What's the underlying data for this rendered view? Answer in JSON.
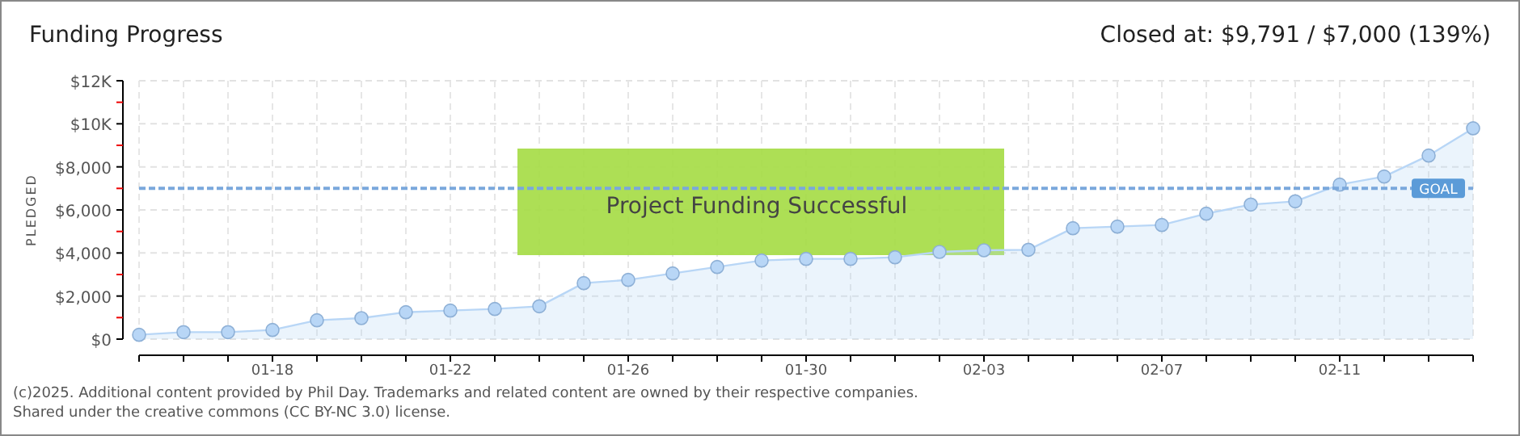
{
  "chart_data": {
    "type": "area",
    "title": "Funding Progress",
    "ylabel": "PLEDGED",
    "x": [
      "2025-01-15",
      "2025-01-16",
      "2025-01-17",
      "2025-01-18",
      "2025-01-19",
      "2025-01-20",
      "2025-01-21",
      "2025-01-22",
      "2025-01-23",
      "2025-01-24",
      "2025-01-25",
      "2025-01-26",
      "2025-01-27",
      "2025-01-28",
      "2025-01-29",
      "2025-01-30",
      "2025-01-31",
      "2025-02-01",
      "2025-02-02",
      "2025-02-03",
      "2025-02-04",
      "2025-02-05",
      "2025-02-06",
      "2025-02-07",
      "2025-02-08",
      "2025-02-09",
      "2025-02-10",
      "2025-02-11",
      "2025-02-12",
      "2025-02-13",
      "2025-02-14"
    ],
    "series": [
      {
        "color": "#b8d6f6",
        "values": [
          200,
          325,
          325,
          425,
          875,
          975,
          1250,
          1325,
          1400,
          1525,
          2600,
          2750,
          3050,
          3350,
          3650,
          3725,
          3725,
          3800,
          4050,
          4125,
          4150,
          5150,
          5225,
          5300,
          5825,
          6250,
          6400,
          7175,
          7550,
          8525,
          9791
        ]
      }
    ],
    "xlim": [
      "2025-01-15",
      "2025-02-14"
    ],
    "xticks": [
      {
        "value": "2025-01-15",
        "label": null
      },
      {
        "value": "2025-01-16",
        "label": null
      },
      {
        "value": "2025-01-17",
        "label": null
      },
      {
        "value": "2025-01-18",
        "label": "01-18"
      },
      {
        "value": "2025-01-19",
        "label": null
      },
      {
        "value": "2025-01-20",
        "label": null
      },
      {
        "value": "2025-01-21",
        "label": null
      },
      {
        "value": "2025-01-22",
        "label": "01-22"
      },
      {
        "value": "2025-01-23",
        "label": null
      },
      {
        "value": "2025-01-24",
        "label": null
      },
      {
        "value": "2025-01-25",
        "label": null
      },
      {
        "value": "2025-01-26",
        "label": "01-26"
      },
      {
        "value": "2025-01-27",
        "label": null
      },
      {
        "value": "2025-01-28",
        "label": null
      },
      {
        "value": "2025-01-29",
        "label": null
      },
      {
        "value": "2025-01-30",
        "label": "01-30"
      },
      {
        "value": "2025-01-31",
        "label": null
      },
      {
        "value": "2025-02-01",
        "label": null
      },
      {
        "value": "2025-02-02",
        "label": null
      },
      {
        "value": "2025-02-03",
        "label": "02-03"
      },
      {
        "value": "2025-02-04",
        "label": null
      },
      {
        "value": "2025-02-05",
        "label": null
      },
      {
        "value": "2025-02-06",
        "label": null
      },
      {
        "value": "2025-02-07",
        "label": "02-07"
      },
      {
        "value": "2025-02-08",
        "label": null
      },
      {
        "value": "2025-02-09",
        "label": null
      },
      {
        "value": "2025-02-10",
        "label": null
      },
      {
        "value": "2025-02-11",
        "label": "02-11"
      },
      {
        "value": "2025-02-12",
        "label": null
      },
      {
        "value": "2025-02-13",
        "label": null
      },
      {
        "value": "2025-02-14",
        "label": null
      }
    ],
    "ylim": [
      0,
      12000
    ],
    "yticks": [
      {
        "value": 0,
        "label": "$0"
      },
      {
        "value": 1000,
        "label": null
      },
      {
        "value": 2000,
        "label": "$2,000"
      },
      {
        "value": 3000,
        "label": null
      },
      {
        "value": 4000,
        "label": "$4,000"
      },
      {
        "value": 5000,
        "label": null
      },
      {
        "value": 6000,
        "label": "$6,000"
      },
      {
        "value": 7000,
        "label": null
      },
      {
        "value": 8000,
        "label": "$8,000"
      },
      {
        "value": 9000,
        "label": null
      },
      {
        "value": 10000,
        "label": "$10K"
      },
      {
        "value": 11000,
        "label": null
      },
      {
        "value": 12000,
        "label": "$12K"
      }
    ],
    "ref_lines": [
      {
        "axis": "y",
        "value": 7000,
        "label": "GOAL",
        "color": "#7aa8dc",
        "line_style": "dashed"
      }
    ],
    "grid": true,
    "marker": "circle",
    "annotations": [
      "Project Funding Successful",
      "Closed at: $9,791 / $7,000 (139%)",
      "(c)2025. Additional content provided by Phil Day. Trademarks and related content are owned by their respective companies.",
      "Shared under the creative commons (CC BY-NC 3.0) license."
    ]
  }
}
